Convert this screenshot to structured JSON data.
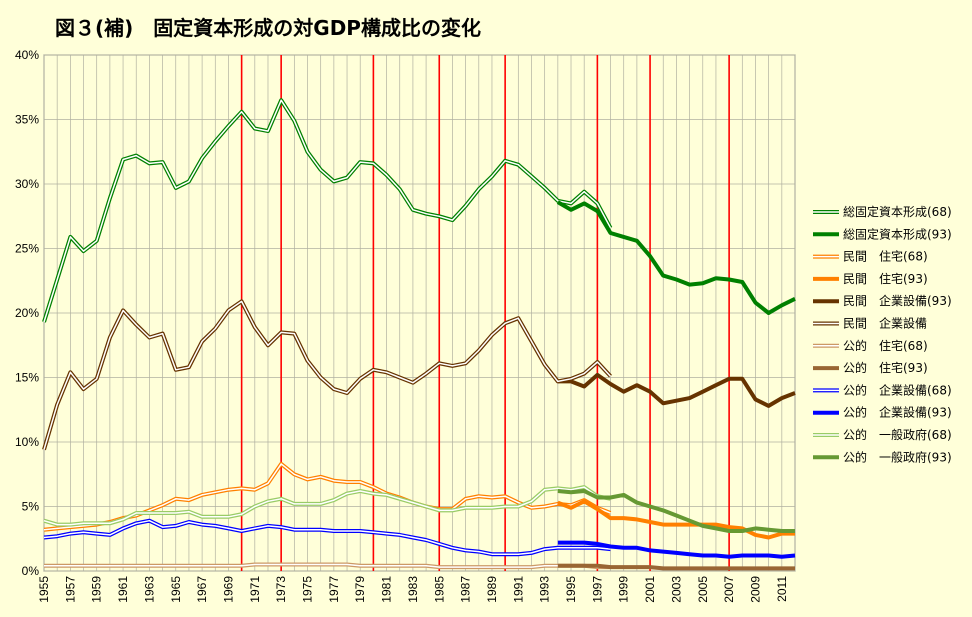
{
  "chart_data": {
    "type": "line",
    "title": "図３(補)　固定資本形成の対GDP構成比の変化",
    "xlabel": "",
    "ylabel": "",
    "ylim": [
      0,
      0.4
    ],
    "xlim": [
      1955,
      2012
    ],
    "y_ticks": [
      "0%",
      "5%",
      "10%",
      "15%",
      "20%",
      "25%",
      "30%",
      "35%",
      "40%"
    ],
    "x_ticks": [
      "1955",
      "1957",
      "1959",
      "1961",
      "1963",
      "1965",
      "1967",
      "1969",
      "1971",
      "1973",
      "1975",
      "1977",
      "1979",
      "1981",
      "1983",
      "1985",
      "1987",
      "1989",
      "1991",
      "1993",
      "1995",
      "1997",
      "1999",
      "2001",
      "2003",
      "2005",
      "2007",
      "2009",
      "2011"
    ],
    "grid": true,
    "legend_position": "right",
    "vertical_markers": [
      1970,
      1973,
      1980,
      1985,
      1990,
      1997,
      2001,
      2007
    ],
    "colors": {
      "background": "#FFFFD9",
      "plot_background": "#FFFFD9",
      "grid": "#B0B0A0",
      "marker_lines": "#FF0000",
      "total": "#008000",
      "private_housing": "#FF8000",
      "private_capex": "#663300",
      "public_housing": "#996633",
      "public_capex": "#0000FF",
      "public_general": "#669933"
    },
    "series": [
      {
        "name": "総固定資本形成(68)",
        "color": "#008000",
        "style": "double",
        "x": [
          1955,
          1956,
          1957,
          1958,
          1959,
          1960,
          1961,
          1962,
          1963,
          1964,
          1965,
          1966,
          1967,
          1968,
          1969,
          1970,
          1971,
          1972,
          1973,
          1974,
          1975,
          1976,
          1977,
          1978,
          1979,
          1980,
          1981,
          1982,
          1983,
          1984,
          1985,
          1986,
          1987,
          1988,
          1989,
          1990,
          1991,
          1992,
          1993,
          1994,
          1995,
          1996,
          1997,
          1998
        ],
        "values": [
          0.193,
          0.226,
          0.259,
          0.248,
          0.256,
          0.289,
          0.319,
          0.322,
          0.316,
          0.317,
          0.297,
          0.302,
          0.32,
          0.333,
          0.345,
          0.356,
          0.343,
          0.341,
          0.365,
          0.349,
          0.325,
          0.311,
          0.302,
          0.305,
          0.317,
          0.316,
          0.307,
          0.296,
          0.28,
          0.277,
          0.275,
          0.272,
          0.283,
          0.296,
          0.306,
          0.318,
          0.315,
          0.306,
          0.297,
          0.287,
          0.285,
          0.294,
          0.285,
          0.266
        ]
      },
      {
        "name": "総固定資本形成(93)",
        "color": "#008000",
        "style": "thick",
        "x": [
          1994,
          1995,
          1996,
          1997,
          1998,
          1999,
          2000,
          2001,
          2002,
          2003,
          2004,
          2005,
          2006,
          2007,
          2008,
          2009,
          2010,
          2011,
          2012
        ],
        "values": [
          0.286,
          0.28,
          0.285,
          0.279,
          0.262,
          0.259,
          0.256,
          0.244,
          0.229,
          0.226,
          0.222,
          0.223,
          0.227,
          0.226,
          0.224,
          0.208,
          0.2,
          0.206,
          0.211
        ]
      },
      {
        "name": "民間　住宅(68)",
        "color": "#FF8000",
        "style": "double",
        "x": [
          1955,
          1956,
          1957,
          1958,
          1959,
          1960,
          1961,
          1962,
          1963,
          1964,
          1965,
          1966,
          1967,
          1968,
          1969,
          1970,
          1971,
          1972,
          1973,
          1974,
          1975,
          1976,
          1977,
          1978,
          1979,
          1980,
          1981,
          1982,
          1983,
          1984,
          1985,
          1986,
          1987,
          1988,
          1989,
          1990,
          1991,
          1992,
          1993,
          1994,
          1995,
          1996,
          1997,
          1998
        ],
        "values": [
          0.032,
          0.033,
          0.034,
          0.035,
          0.036,
          0.038,
          0.041,
          0.043,
          0.047,
          0.051,
          0.056,
          0.055,
          0.059,
          0.061,
          0.063,
          0.064,
          0.063,
          0.068,
          0.083,
          0.075,
          0.071,
          0.073,
          0.07,
          0.069,
          0.069,
          0.065,
          0.06,
          0.057,
          0.053,
          0.05,
          0.048,
          0.048,
          0.056,
          0.058,
          0.057,
          0.058,
          0.053,
          0.049,
          0.05,
          0.052,
          0.051,
          0.055,
          0.049,
          0.045
        ]
      },
      {
        "name": "民間　住宅(93)",
        "color": "#FF8000",
        "style": "thick",
        "x": [
          1994,
          1995,
          1996,
          1997,
          1998,
          1999,
          2000,
          2001,
          2002,
          2003,
          2004,
          2005,
          2006,
          2007,
          2008,
          2009,
          2010,
          2011,
          2012
        ],
        "values": [
          0.053,
          0.049,
          0.054,
          0.048,
          0.041,
          0.041,
          0.04,
          0.038,
          0.036,
          0.036,
          0.036,
          0.036,
          0.036,
          0.034,
          0.033,
          0.028,
          0.026,
          0.029,
          0.029
        ]
      },
      {
        "name": "民間　企業設備(93)",
        "color": "#663300",
        "style": "thick",
        "x": [
          1994,
          1995,
          1996,
          1997,
          1998,
          1999,
          2000,
          2001,
          2002,
          2003,
          2004,
          2005,
          2006,
          2007,
          2008,
          2009,
          2010,
          2011,
          2012
        ],
        "values": [
          0.147,
          0.147,
          0.143,
          0.152,
          0.145,
          0.139,
          0.144,
          0.139,
          0.13,
          0.132,
          0.134,
          0.139,
          0.144,
          0.149,
          0.149,
          0.133,
          0.128,
          0.134,
          0.138
        ]
      },
      {
        "name": "民間　企業設備",
        "color": "#663300",
        "style": "double",
        "x": [
          1955,
          1956,
          1957,
          1958,
          1959,
          1960,
          1961,
          1962,
          1963,
          1964,
          1965,
          1966,
          1967,
          1968,
          1969,
          1970,
          1971,
          1972,
          1973,
          1974,
          1975,
          1976,
          1977,
          1978,
          1979,
          1980,
          1981,
          1982,
          1983,
          1984,
          1985,
          1986,
          1987,
          1988,
          1989,
          1990,
          1991,
          1992,
          1993,
          1994,
          1995,
          1996,
          1997,
          1998
        ],
        "values": [
          0.094,
          0.129,
          0.154,
          0.141,
          0.149,
          0.181,
          0.202,
          0.191,
          0.181,
          0.184,
          0.156,
          0.158,
          0.178,
          0.188,
          0.202,
          0.209,
          0.189,
          0.175,
          0.185,
          0.184,
          0.163,
          0.15,
          0.141,
          0.138,
          0.149,
          0.156,
          0.154,
          0.15,
          0.146,
          0.153,
          0.161,
          0.159,
          0.161,
          0.171,
          0.183,
          0.192,
          0.196,
          0.178,
          0.16,
          0.147,
          0.149,
          0.153,
          0.162,
          0.151
        ]
      },
      {
        "name": "公的　住宅(68)",
        "color": "#CC9966",
        "style": "double",
        "x": [
          1955,
          1956,
          1957,
          1958,
          1959,
          1960,
          1961,
          1962,
          1963,
          1964,
          1965,
          1966,
          1967,
          1968,
          1969,
          1970,
          1971,
          1972,
          1973,
          1974,
          1975,
          1976,
          1977,
          1978,
          1979,
          1980,
          1981,
          1982,
          1983,
          1984,
          1985,
          1986,
          1987,
          1988,
          1989,
          1990,
          1991,
          1992,
          1993,
          1994,
          1995,
          1996,
          1997,
          1998
        ],
        "values": [
          0.004,
          0.004,
          0.004,
          0.004,
          0.004,
          0.004,
          0.004,
          0.004,
          0.004,
          0.004,
          0.004,
          0.004,
          0.004,
          0.004,
          0.004,
          0.004,
          0.005,
          0.005,
          0.005,
          0.005,
          0.005,
          0.005,
          0.005,
          0.005,
          0.004,
          0.004,
          0.004,
          0.004,
          0.004,
          0.004,
          0.003,
          0.003,
          0.003,
          0.003,
          0.003,
          0.003,
          0.003,
          0.003,
          0.004,
          0.004,
          0.004,
          0.004,
          0.003,
          0.003
        ]
      },
      {
        "name": "公的　住宅(93)",
        "color": "#996633",
        "style": "thick",
        "x": [
          1994,
          1995,
          1996,
          1997,
          1998,
          1999,
          2000,
          2001,
          2002,
          2003,
          2004,
          2005,
          2006,
          2007,
          2008,
          2009,
          2010,
          2011,
          2012
        ],
        "values": [
          0.004,
          0.004,
          0.004,
          0.004,
          0.003,
          0.003,
          0.003,
          0.003,
          0.002,
          0.002,
          0.002,
          0.002,
          0.002,
          0.002,
          0.002,
          0.002,
          0.002,
          0.002,
          0.002
        ]
      },
      {
        "name": "公的　企業設備(68)",
        "color": "#0000FF",
        "style": "double",
        "x": [
          1955,
          1956,
          1957,
          1958,
          1959,
          1960,
          1961,
          1962,
          1963,
          1964,
          1965,
          1966,
          1967,
          1968,
          1969,
          1970,
          1971,
          1972,
          1973,
          1974,
          1975,
          1976,
          1977,
          1978,
          1979,
          1980,
          1981,
          1982,
          1983,
          1984,
          1985,
          1986,
          1987,
          1988,
          1989,
          1990,
          1991,
          1992,
          1993,
          1994,
          1995,
          1996,
          1997,
          1998
        ],
        "values": [
          0.026,
          0.027,
          0.029,
          0.03,
          0.029,
          0.028,
          0.033,
          0.037,
          0.039,
          0.034,
          0.035,
          0.038,
          0.036,
          0.035,
          0.033,
          0.031,
          0.033,
          0.035,
          0.034,
          0.032,
          0.032,
          0.032,
          0.031,
          0.031,
          0.031,
          0.03,
          0.029,
          0.028,
          0.026,
          0.024,
          0.021,
          0.018,
          0.016,
          0.015,
          0.013,
          0.013,
          0.013,
          0.014,
          0.017,
          0.018,
          0.018,
          0.018,
          0.018,
          0.017
        ]
      },
      {
        "name": "公的　企業設備(93)",
        "color": "#0000FF",
        "style": "thick",
        "x": [
          1994,
          1995,
          1996,
          1997,
          1998,
          1999,
          2000,
          2001,
          2002,
          2003,
          2004,
          2005,
          2006,
          2007,
          2008,
          2009,
          2010,
          2011,
          2012
        ],
        "values": [
          0.022,
          0.022,
          0.022,
          0.021,
          0.019,
          0.018,
          0.018,
          0.016,
          0.015,
          0.014,
          0.013,
          0.012,
          0.012,
          0.011,
          0.012,
          0.012,
          0.012,
          0.011,
          0.012
        ]
      },
      {
        "name": "公的　一般政府(68)",
        "color": "#99CC66",
        "style": "double",
        "x": [
          1955,
          1956,
          1957,
          1958,
          1959,
          1960,
          1961,
          1962,
          1963,
          1964,
          1965,
          1966,
          1967,
          1968,
          1969,
          1970,
          1971,
          1972,
          1973,
          1974,
          1975,
          1976,
          1977,
          1978,
          1979,
          1980,
          1981,
          1982,
          1983,
          1984,
          1985,
          1986,
          1987,
          1988,
          1989,
          1990,
          1991,
          1992,
          1993,
          1994,
          1995,
          1996,
          1997,
          1998
        ],
        "values": [
          0.039,
          0.036,
          0.036,
          0.037,
          0.037,
          0.037,
          0.04,
          0.045,
          0.045,
          0.045,
          0.045,
          0.046,
          0.042,
          0.042,
          0.042,
          0.044,
          0.05,
          0.054,
          0.056,
          0.052,
          0.052,
          0.052,
          0.055,
          0.06,
          0.062,
          0.06,
          0.059,
          0.056,
          0.053,
          0.05,
          0.047,
          0.047,
          0.049,
          0.049,
          0.049,
          0.05,
          0.05,
          0.054,
          0.063,
          0.064,
          0.063,
          0.065,
          0.058,
          0.056
        ]
      },
      {
        "name": "公的　一般政府(93)",
        "color": "#669933",
        "style": "thick",
        "x": [
          1994,
          1995,
          1996,
          1997,
          1998,
          1999,
          2000,
          2001,
          2002,
          2003,
          2004,
          2005,
          2006,
          2007,
          2008,
          2009,
          2010,
          2011,
          2012
        ],
        "values": [
          0.062,
          0.061,
          0.062,
          0.057,
          0.057,
          0.059,
          0.053,
          0.05,
          0.047,
          0.043,
          0.039,
          0.035,
          0.033,
          0.031,
          0.031,
          0.033,
          0.032,
          0.031,
          0.031
        ]
      }
    ]
  }
}
